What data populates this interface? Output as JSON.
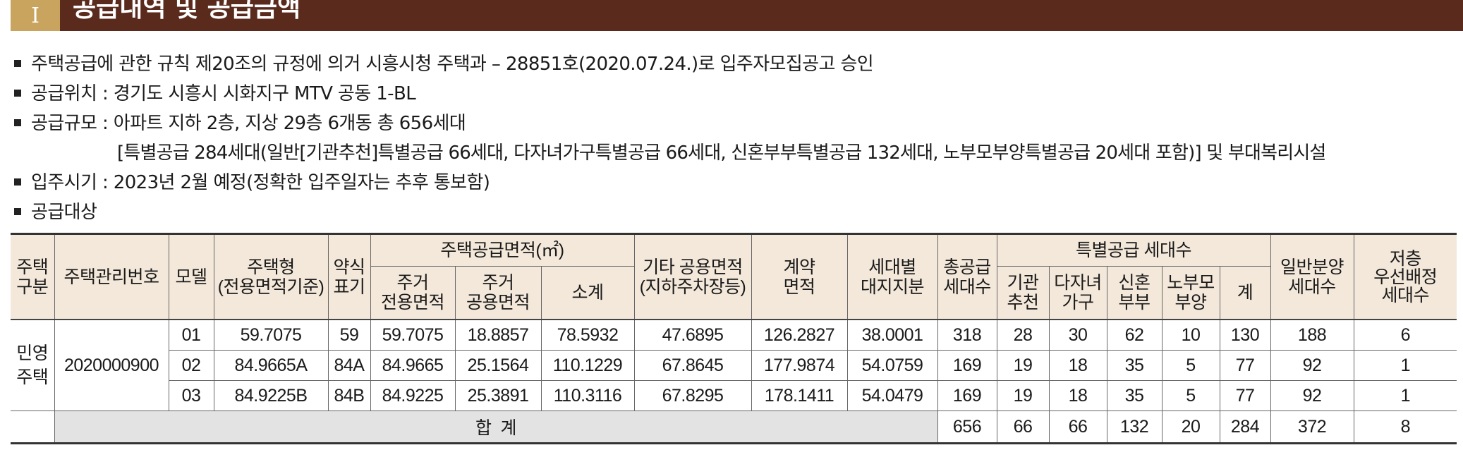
{
  "banner": {
    "number": "I",
    "title": "공급내역 및 공급금액"
  },
  "bullets": [
    "주택공급에 관한 규칙 제20조의 규정에 의거 시흥시청 주택과 – 28851호(2020.07.24.)로 입주자모집공고 승인",
    "공급위치 : 경기도 시흥시 시화지구 MTV 공동 1-BL",
    "공급규모 : 아파트 지하 2층, 지상 29층 6개동 총 656세대",
    "[특별공급 284세대(일반[기관추천]특별공급 66세대, 다자녀가구특별공급 66세대, 신혼부부특별공급 132세대, 노부모부양특별공급 20세대 포함)] 및 부대복리시설",
    "입주시기 : 2023년 2월 예정(정확한 입주일자는 추후 통보함)",
    "공급대상"
  ],
  "table": {
    "headers": {
      "house_type": "주택\n구분",
      "mgmt_no": "주택관리번호",
      "model": "모델",
      "housing_type": "주택형\n(전용면적기준)",
      "abbr": "약식\n표기",
      "supply_area": "주택공급면적(㎡)",
      "private_area": "주거\n전용면적",
      "common_area": "주거\n공용면적",
      "subtotal": "소계",
      "other_common": "기타 공용면적\n(지하주차장등)",
      "contract_area": "계약\n면적",
      "land_share": "세대별\n대지지분",
      "total_supply": "총공급\n세대수",
      "special_supply": "특별공급 세대수",
      "agency": "기관\n추천",
      "multi_child": "다자녀\n가구",
      "newlywed": "신혼\n부부",
      "elderly": "노부모\n부양",
      "special_sum": "계",
      "general": "일반분양\n세대수",
      "low_floor": "저층\n우선배정\n세대수"
    },
    "category": "민영\n주택",
    "mgmt_no": "2020000900",
    "rows": [
      {
        "model": "01",
        "type": "59.7075",
        "abbr": "59",
        "private": "59.7075",
        "common": "18.8857",
        "subtotal": "78.5932",
        "other": "47.6895",
        "contract": "126.2827",
        "land": "38.0001",
        "total": "318",
        "agency": "28",
        "multi": "30",
        "newly": "62",
        "elder": "10",
        "sum": "130",
        "general": "188",
        "low": "6"
      },
      {
        "model": "02",
        "type": "84.9665A",
        "abbr": "84A",
        "private": "84.9665",
        "common": "25.1564",
        "subtotal": "110.1229",
        "other": "67.8645",
        "contract": "177.9874",
        "land": "54.0759",
        "total": "169",
        "agency": "19",
        "multi": "18",
        "newly": "35",
        "elder": "5",
        "sum": "77",
        "general": "92",
        "low": "1"
      },
      {
        "model": "03",
        "type": "84.9225B",
        "abbr": "84B",
        "private": "84.9225",
        "common": "25.3891",
        "subtotal": "110.3116",
        "other": "67.8295",
        "contract": "178.1411",
        "land": "54.0479",
        "total": "169",
        "agency": "19",
        "multi": "18",
        "newly": "35",
        "elder": "5",
        "sum": "77",
        "general": "92",
        "low": "1"
      }
    ],
    "total_row": {
      "label": "합  계",
      "total": "656",
      "agency": "66",
      "multi": "66",
      "newly": "132",
      "elder": "20",
      "sum": "284",
      "general": "372",
      "low": "8"
    }
  }
}
